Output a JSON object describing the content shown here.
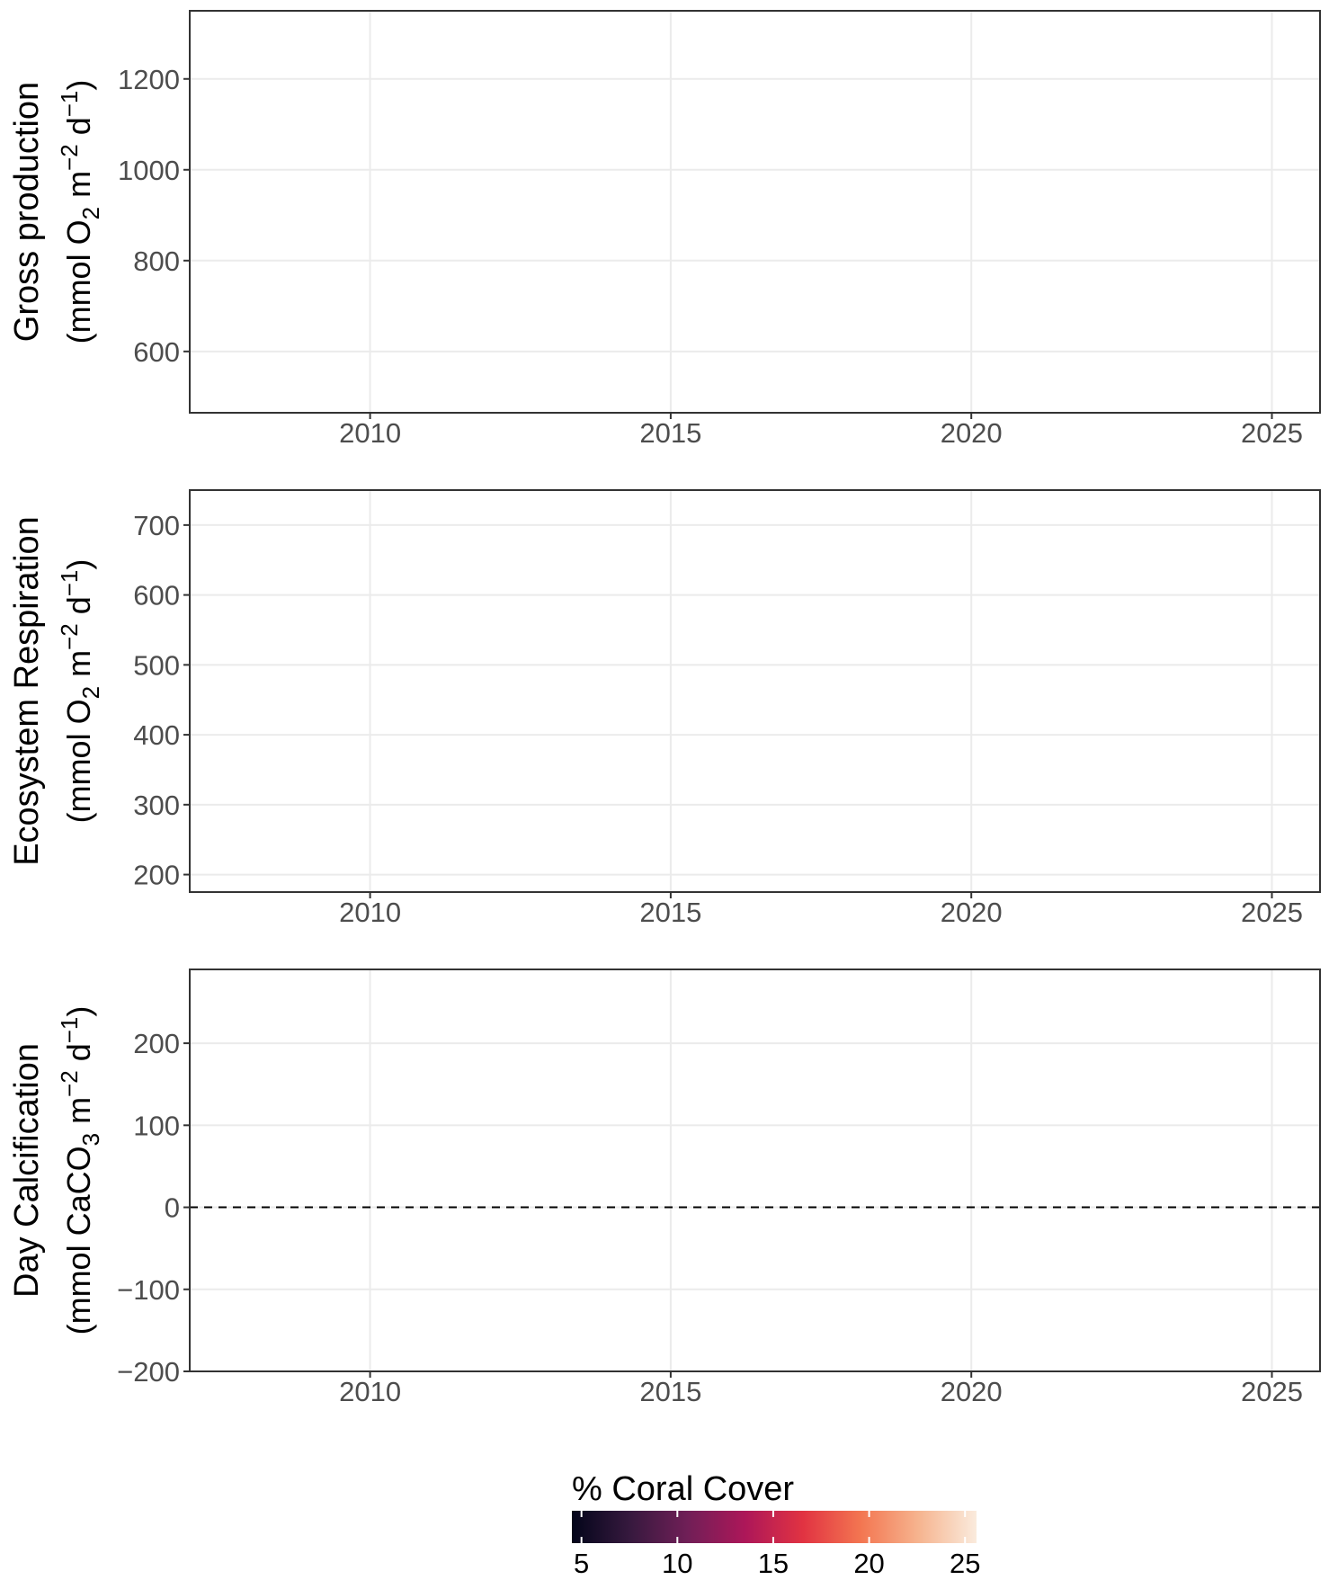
{
  "chart_data": [
    {
      "type": "scatter",
      "ylabel_line1": "Gross production",
      "ylabel_line2": {
        "pre": "(mmol O",
        "sub": "2",
        "mid": " m",
        "sup1": "−2",
        "mid2": " d",
        "sup2": "−1",
        "post": ")"
      },
      "xlim": [
        2007,
        2025.8
      ],
      "ylim": [
        465,
        1350
      ],
      "x_ticks": [
        2010,
        2015,
        2020,
        2025
      ],
      "x_tick_labels": [
        "2010",
        "2015",
        "2020",
        "2025"
      ],
      "y_ticks": [
        600,
        800,
        1000,
        1200
      ],
      "y_tick_labels": [
        "600",
        "800",
        "1000",
        "1200"
      ],
      "grid": true,
      "reference_line": null,
      "series": []
    },
    {
      "type": "scatter",
      "ylabel_line1": "Ecosystem Respiration",
      "ylabel_line2": {
        "pre": "(mmol O",
        "sub": "2",
        "mid": " m",
        "sup1": "−2",
        "mid2": " d",
        "sup2": "−1",
        "post": ")"
      },
      "xlim": [
        2007,
        2025.8
      ],
      "ylim": [
        175,
        750
      ],
      "x_ticks": [
        2010,
        2015,
        2020,
        2025
      ],
      "x_tick_labels": [
        "2010",
        "2015",
        "2020",
        "2025"
      ],
      "y_ticks": [
        200,
        300,
        400,
        500,
        600,
        700
      ],
      "y_tick_labels": [
        "200",
        "300",
        "400",
        "500",
        "600",
        "700"
      ],
      "grid": true,
      "reference_line": null,
      "series": []
    },
    {
      "type": "scatter",
      "ylabel_line1": "Day Calcification",
      "ylabel_line2": {
        "pre": "(mmol CaCO",
        "sub": "3",
        "mid": " m",
        "sup1": "−2",
        "mid2": " d",
        "sup2": "−1",
        "post": ")"
      },
      "xlim": [
        2007,
        2025.8
      ],
      "ylim": [
        -200,
        290
      ],
      "x_ticks": [
        2010,
        2015,
        2020,
        2025
      ],
      "x_tick_labels": [
        "2010",
        "2015",
        "2020",
        "2025"
      ],
      "y_ticks": [
        -200,
        -100,
        0,
        100,
        200
      ],
      "y_tick_labels": [
        "−200",
        "−100",
        "0",
        "100",
        "200"
      ],
      "grid": true,
      "reference_line": {
        "y": 0,
        "style": "dashed"
      },
      "series": []
    }
  ],
  "legend": {
    "title": "% Coral Cover",
    "placement": "bottom-center",
    "range": [
      4.5,
      25.6
    ],
    "ticks": [
      5,
      10,
      15,
      20,
      25
    ],
    "tick_labels": [
      "5",
      "10",
      "15",
      "20",
      "25"
    ],
    "colors": [
      "#03051a",
      "#36193e",
      "#701f57",
      "#ad1759",
      "#e13342",
      "#f37651",
      "#f6b48f",
      "#faebdd"
    ]
  }
}
